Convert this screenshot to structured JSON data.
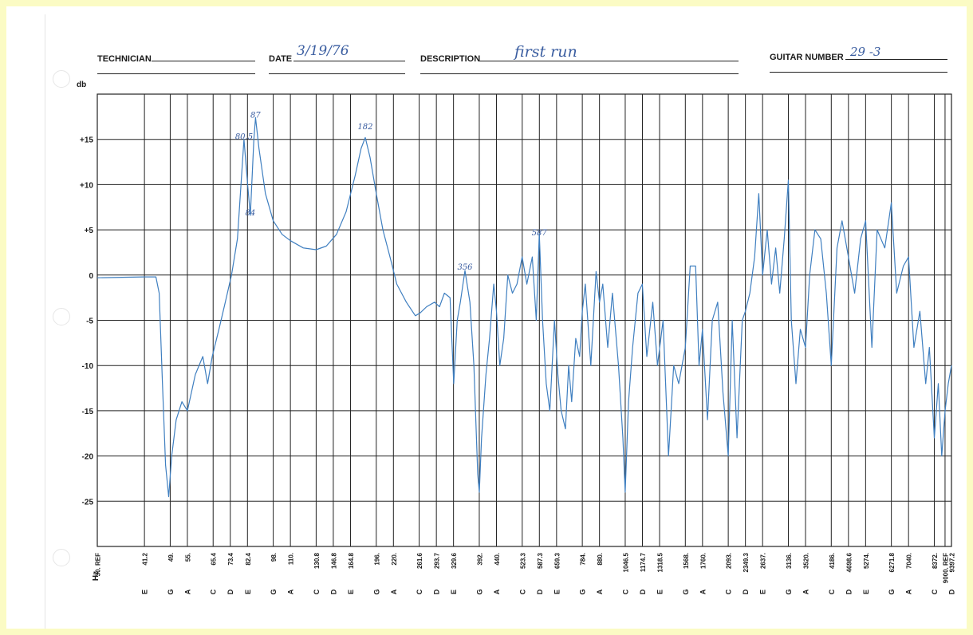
{
  "form": {
    "technician_label": "TECHNICIAN",
    "technician_value": "",
    "date_label": "DATE",
    "date_value": "3/19/76",
    "description_label": "DESCRIPTION",
    "description_value": "first run",
    "guitar_number_label": "GUITAR NUMBER",
    "guitar_number_value": "29 -3"
  },
  "colors": {
    "page_background": "#fbfbc4",
    "paper": "#ffffff",
    "grid": "#222222",
    "trace": "#3f7fc0",
    "handwriting": "#3a5da0"
  },
  "chart_data": {
    "type": "line",
    "title": "",
    "ylabel": "db",
    "xlabel": "Hz",
    "ylim": [
      -30,
      20
    ],
    "y_ticks": [
      {
        "value": 15,
        "label": "+15"
      },
      {
        "value": 10,
        "label": "+10"
      },
      {
        "value": 5,
        "label": "+5"
      },
      {
        "value": 0,
        "label": "0"
      },
      {
        "value": -5,
        "label": "-5"
      },
      {
        "value": -10,
        "label": "-10"
      },
      {
        "value": -15,
        "label": "-15"
      },
      {
        "value": -20,
        "label": "-20"
      },
      {
        "value": -25,
        "label": "-25"
      }
    ],
    "x_scale": "log",
    "grid": true,
    "x_ticks": [
      {
        "hz": 30,
        "freq_label": "30. REF",
        "note": ""
      },
      {
        "hz": 41.2,
        "freq_label": "41.2",
        "note": "E"
      },
      {
        "hz": 49,
        "freq_label": "49.",
        "note": "G"
      },
      {
        "hz": 55,
        "freq_label": "55.",
        "note": "A"
      },
      {
        "hz": 65.4,
        "freq_label": "65.4",
        "note": "C"
      },
      {
        "hz": 73.4,
        "freq_label": "73.4",
        "note": "D"
      },
      {
        "hz": 82.4,
        "freq_label": "82.4",
        "note": "E"
      },
      {
        "hz": 98,
        "freq_label": "98.",
        "note": "G"
      },
      {
        "hz": 110,
        "freq_label": "110.",
        "note": "A"
      },
      {
        "hz": 130.8,
        "freq_label": "130.8",
        "note": "C"
      },
      {
        "hz": 146.8,
        "freq_label": "146.8",
        "note": "D"
      },
      {
        "hz": 164.8,
        "freq_label": "164.8",
        "note": "E"
      },
      {
        "hz": 196,
        "freq_label": "196.",
        "note": "G"
      },
      {
        "hz": 220,
        "freq_label": "220.",
        "note": "A"
      },
      {
        "hz": 261.6,
        "freq_label": "261.6",
        "note": "C"
      },
      {
        "hz": 293.7,
        "freq_label": "293.7",
        "note": "D"
      },
      {
        "hz": 329.6,
        "freq_label": "329.6",
        "note": "E"
      },
      {
        "hz": 392,
        "freq_label": "392.",
        "note": "G"
      },
      {
        "hz": 440,
        "freq_label": "440.",
        "note": "A"
      },
      {
        "hz": 523.3,
        "freq_label": "523.3",
        "note": "C"
      },
      {
        "hz": 587.3,
        "freq_label": "587.3",
        "note": "D"
      },
      {
        "hz": 659.3,
        "freq_label": "659.3",
        "note": "E"
      },
      {
        "hz": 784,
        "freq_label": "784.",
        "note": "G"
      },
      {
        "hz": 880,
        "freq_label": "880.",
        "note": "A"
      },
      {
        "hz": 1046.5,
        "freq_label": "1046.5",
        "note": "C"
      },
      {
        "hz": 1174.7,
        "freq_label": "1174.7",
        "note": "D"
      },
      {
        "hz": 1318.5,
        "freq_label": "1318.5",
        "note": "E"
      },
      {
        "hz": 1568,
        "freq_label": "1568.",
        "note": "G"
      },
      {
        "hz": 1760,
        "freq_label": "1760.",
        "note": "A"
      },
      {
        "hz": 2093,
        "freq_label": "2093.",
        "note": "C"
      },
      {
        "hz": 2349.3,
        "freq_label": "2349.3",
        "note": "D"
      },
      {
        "hz": 2637,
        "freq_label": "2637.",
        "note": "E"
      },
      {
        "hz": 3136,
        "freq_label": "3136.",
        "note": "G"
      },
      {
        "hz": 3520,
        "freq_label": "3520.",
        "note": "A"
      },
      {
        "hz": 4186,
        "freq_label": "4186.",
        "note": "C"
      },
      {
        "hz": 4698.6,
        "freq_label": "4698.6",
        "note": "D"
      },
      {
        "hz": 5274,
        "freq_label": "5274.",
        "note": "E"
      },
      {
        "hz": 6271.8,
        "freq_label": "6271.8",
        "note": "G"
      },
      {
        "hz": 7040,
        "freq_label": "7040.",
        "note": "A"
      },
      {
        "hz": 8372,
        "freq_label": "8372.",
        "note": "C"
      },
      {
        "hz": 9000,
        "freq_label": "9000. REF",
        "note": ""
      },
      {
        "hz": 9397.2,
        "freq_label": "9397.2",
        "note": "D"
      }
    ],
    "annotations": [
      {
        "text": "80.5",
        "hz": 80.5,
        "db": 15
      },
      {
        "text": "87",
        "hz": 87,
        "db": 17.4
      },
      {
        "text": "84",
        "hz": 84,
        "db": 6.6
      },
      {
        "text": "182",
        "hz": 182,
        "db": 16.1
      },
      {
        "text": "356",
        "hz": 356,
        "db": 0.6
      },
      {
        "text": "587",
        "hz": 587,
        "db": 4.4
      }
    ],
    "series": [
      {
        "values": [
          [
            30,
            -0.3
          ],
          [
            41,
            -0.2
          ],
          [
            44.5,
            -0.2
          ],
          [
            45.5,
            -2
          ],
          [
            46.5,
            -12
          ],
          [
            47.5,
            -21
          ],
          [
            48.5,
            -24.5
          ],
          [
            49.5,
            -20
          ],
          [
            51,
            -16
          ],
          [
            53,
            -14
          ],
          [
            55,
            -15
          ],
          [
            58,
            -11
          ],
          [
            61,
            -9
          ],
          [
            63,
            -12
          ],
          [
            65,
            -9
          ],
          [
            68,
            -6
          ],
          [
            71,
            -3
          ],
          [
            74,
            0
          ],
          [
            77,
            4
          ],
          [
            80.5,
            15
          ],
          [
            82.5,
            10
          ],
          [
            84,
            6.6
          ],
          [
            86,
            15
          ],
          [
            87,
            17.4
          ],
          [
            89,
            14
          ],
          [
            93,
            9
          ],
          [
            98,
            6
          ],
          [
            104,
            4.5
          ],
          [
            110,
            3.8
          ],
          [
            120,
            3
          ],
          [
            130.8,
            2.8
          ],
          [
            140,
            3.2
          ],
          [
            150,
            4.5
          ],
          [
            160,
            7
          ],
          [
            170,
            11
          ],
          [
            177,
            14
          ],
          [
            182,
            15.2
          ],
          [
            188,
            13
          ],
          [
            196,
            9
          ],
          [
            205,
            5
          ],
          [
            215,
            2
          ],
          [
            225,
            -1
          ],
          [
            240,
            -3
          ],
          [
            255,
            -4.5
          ],
          [
            263,
            -4.2
          ],
          [
            275,
            -3.5
          ],
          [
            290,
            -3
          ],
          [
            300,
            -3.5
          ],
          [
            310,
            -2
          ],
          [
            322,
            -2.5
          ],
          [
            330,
            -12
          ],
          [
            338,
            -5
          ],
          [
            345,
            -3
          ],
          [
            356,
            0.5
          ],
          [
            368,
            -3
          ],
          [
            378,
            -10
          ],
          [
            388,
            -22
          ],
          [
            392,
            -24
          ],
          [
            398,
            -18
          ],
          [
            410,
            -11
          ],
          [
            420,
            -7
          ],
          [
            432,
            -1
          ],
          [
            440,
            -4
          ],
          [
            450,
            -10
          ],
          [
            462,
            -7
          ],
          [
            475,
            0
          ],
          [
            490,
            -2
          ],
          [
            505,
            -1
          ],
          [
            523,
            2
          ],
          [
            540,
            -1
          ],
          [
            560,
            2
          ],
          [
            575,
            -5
          ],
          [
            587,
            4.6
          ],
          [
            600,
            -5
          ],
          [
            615,
            -12
          ],
          [
            630,
            -15
          ],
          [
            650,
            -5
          ],
          [
            665,
            -11
          ],
          [
            680,
            -15
          ],
          [
            700,
            -17
          ],
          [
            715,
            -10
          ],
          [
            730,
            -14
          ],
          [
            750,
            -7
          ],
          [
            770,
            -9
          ],
          [
            784,
            -4
          ],
          [
            800,
            -1
          ],
          [
            830,
            -10
          ],
          [
            860,
            0.4
          ],
          [
            880,
            -3
          ],
          [
            900,
            -1
          ],
          [
            930,
            -8
          ],
          [
            960,
            -2
          ],
          [
            1000,
            -10
          ],
          [
            1030,
            -18
          ],
          [
            1046,
            -24
          ],
          [
            1070,
            -14
          ],
          [
            1100,
            -8
          ],
          [
            1140,
            -2
          ],
          [
            1174,
            -1
          ],
          [
            1210,
            -9
          ],
          [
            1260,
            -3
          ],
          [
            1300,
            -10
          ],
          [
            1350,
            -5
          ],
          [
            1400,
            -20
          ],
          [
            1450,
            -10
          ],
          [
            1500,
            -12
          ],
          [
            1568,
            -8
          ],
          [
            1620,
            1
          ],
          [
            1680,
            1
          ],
          [
            1720,
            -10
          ],
          [
            1760,
            -6
          ],
          [
            1820,
            -16
          ],
          [
            1880,
            -5
          ],
          [
            1950,
            -3
          ],
          [
            2020,
            -13
          ],
          [
            2093,
            -20
          ],
          [
            2150,
            -5
          ],
          [
            2220,
            -18
          ],
          [
            2300,
            -5
          ],
          [
            2349,
            -4
          ],
          [
            2420,
            -2
          ],
          [
            2500,
            2
          ],
          [
            2570,
            9
          ],
          [
            2637,
            0
          ],
          [
            2720,
            5
          ],
          [
            2800,
            -1
          ],
          [
            2880,
            3
          ],
          [
            2960,
            -2
          ],
          [
            3050,
            4
          ],
          [
            3136,
            10.5
          ],
          [
            3200,
            -5
          ],
          [
            3300,
            -12
          ],
          [
            3400,
            -6
          ],
          [
            3520,
            -8
          ],
          [
            3620,
            0
          ],
          [
            3750,
            5
          ],
          [
            3900,
            4
          ],
          [
            4050,
            -2
          ],
          [
            4186,
            -10
          ],
          [
            4350,
            3
          ],
          [
            4500,
            6
          ],
          [
            4698,
            2
          ],
          [
            4900,
            -2
          ],
          [
            5100,
            4
          ],
          [
            5274,
            6
          ],
          [
            5500,
            -8
          ],
          [
            5700,
            5
          ],
          [
            6000,
            3
          ],
          [
            6271,
            8
          ],
          [
            6500,
            -2
          ],
          [
            6800,
            1
          ],
          [
            7040,
            2
          ],
          [
            7300,
            -8
          ],
          [
            7600,
            -4
          ],
          [
            7900,
            -12
          ],
          [
            8100,
            -8
          ],
          [
            8372,
            -18
          ],
          [
            8600,
            -12
          ],
          [
            8800,
            -20
          ],
          [
            9000,
            -15
          ],
          [
            9200,
            -12
          ],
          [
            9397,
            -10
          ]
        ]
      }
    ]
  }
}
